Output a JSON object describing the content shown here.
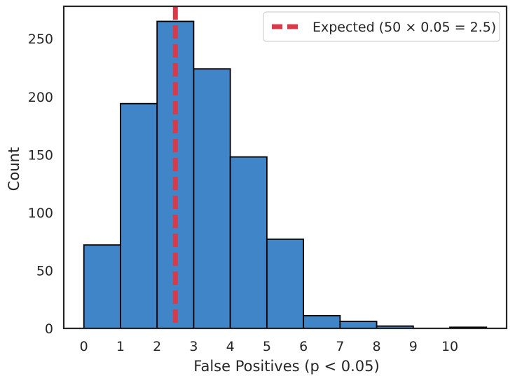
{
  "chart_data": {
    "type": "bar",
    "title": "",
    "xlabel": "False Positives (p < 0.05)",
    "ylabel": "Count",
    "bin_edges": [
      0,
      1,
      2,
      3,
      4,
      5,
      6,
      7,
      8,
      9,
      10,
      11
    ],
    "values": [
      72,
      194,
      265,
      224,
      148,
      77,
      11,
      6,
      2,
      0,
      1
    ],
    "x_ticks": [
      "0",
      "1",
      "2",
      "3",
      "4",
      "5",
      "6",
      "7",
      "8",
      "9",
      "10"
    ],
    "y_ticks": [
      "0",
      "50",
      "100",
      "150",
      "200",
      "250"
    ],
    "xlim": [
      -0.55,
      11.55
    ],
    "ylim": [
      0,
      278
    ],
    "grid": false,
    "bar_color": "#3f85c7",
    "bar_edge_color": "#000000",
    "reference_line": {
      "x": 2.5,
      "label": "Expected (50 × 0.05 = 2.5)",
      "color": "#d93a4a",
      "style": "dashed"
    },
    "legend": {
      "position": "top-right",
      "entries": [
        "Expected (50 × 0.05 = 2.5)"
      ]
    }
  }
}
